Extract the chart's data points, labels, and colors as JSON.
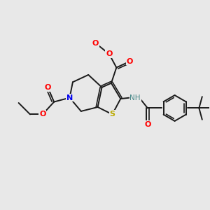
{
  "background_color": "#e8e8e8",
  "bond_color": "#1a1a1a",
  "atom_colors": {
    "O": "#ff0000",
    "N": "#0000ee",
    "S": "#bbaa00",
    "H": "#4a8a8a",
    "C": "#1a1a1a"
  },
  "figsize": [
    3.0,
    3.0
  ],
  "dpi": 100,
  "lw": 1.4
}
